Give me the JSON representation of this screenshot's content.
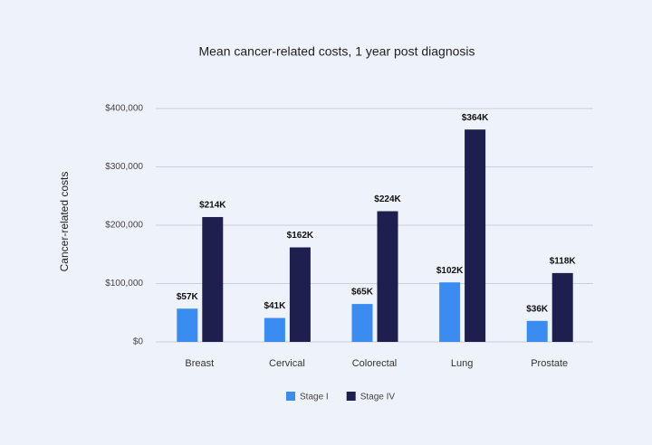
{
  "chart_data": {
    "type": "bar",
    "title": "Mean cancer-related costs, 1 year post diagnosis",
    "y_label": "Cancer-related costs",
    "categories": [
      "Breast",
      "Cervical",
      "Colorectal",
      "Lung",
      "Prostate"
    ],
    "series": [
      {
        "name": "Stage I",
        "color": "#3b8cf0",
        "values": [
          57000,
          41000,
          65000,
          102000,
          36000
        ],
        "value_labels": [
          "$57K",
          "$41K",
          "$65K",
          "$102K",
          "$36K"
        ]
      },
      {
        "name": "Stage IV",
        "color": "#1e1e4f",
        "values": [
          214000,
          162000,
          224000,
          364000,
          118000
        ],
        "value_labels": [
          "$214K",
          "$162K",
          "$224K",
          "$364K",
          "$118K"
        ]
      }
    ],
    "ylim": [
      0,
      400000
    ],
    "yticks": [
      {
        "value": 0,
        "label": "$0"
      },
      {
        "value": 100000,
        "label": "$100,000"
      },
      {
        "value": 200000,
        "label": "$200,000"
      },
      {
        "value": 300000,
        "label": "$300,000"
      },
      {
        "value": 400000,
        "label": "$400,000"
      }
    ],
    "grid": true,
    "legend": "bottom"
  }
}
